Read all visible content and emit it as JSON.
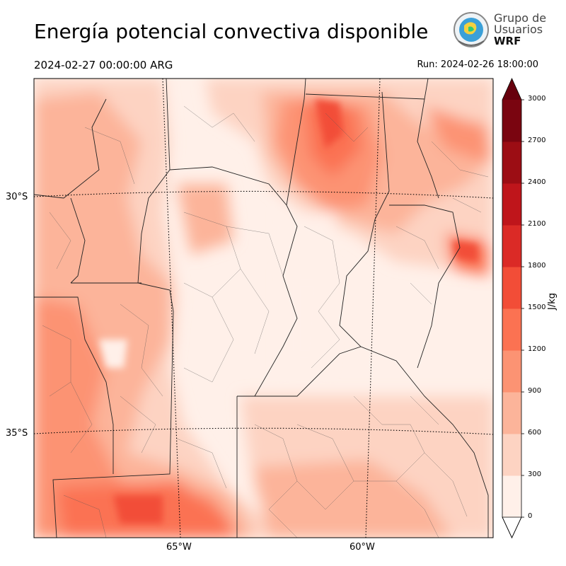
{
  "header": {
    "title": "Energía potencial convectiva disponible",
    "valid_time": "2024-02-27 00:00:00 ARG",
    "run_time": "Run: 2024-02-26 18:00:00"
  },
  "logo": {
    "line1": "Grupo de",
    "line2": "Usuarios",
    "line3": "WRF"
  },
  "map": {
    "lat_labels": [
      "30°S",
      "35°S"
    ],
    "lon_labels": [
      "65°W",
      "60°W"
    ]
  },
  "colorbar": {
    "unit": "J/kg",
    "ticks": [
      "0",
      "300",
      "600",
      "900",
      "1200",
      "1500",
      "1800",
      "2100",
      "2400",
      "2700",
      "3000"
    ],
    "colors": [
      "#fff0e9",
      "#fdd3c2",
      "#fcb49a",
      "#fc9373",
      "#fb7252",
      "#f24d37",
      "#db2a26",
      "#bf151b",
      "#9c0d14",
      "#7a0510"
    ],
    "extend_high_color": "#67000d"
  }
}
